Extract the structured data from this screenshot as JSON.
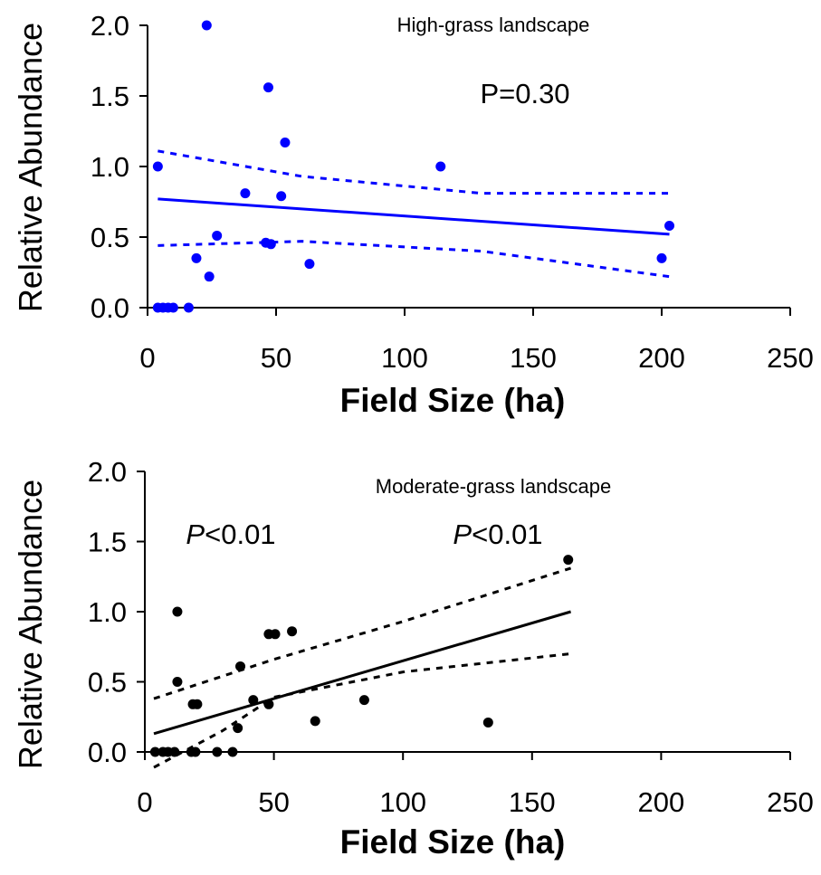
{
  "chart_data": [
    {
      "type": "scatter",
      "title": "High-grass landscape",
      "annotation": "P=0.30",
      "xlabel": "Field Size (ha)",
      "ylabel": "Relative Abundance",
      "xlim": [
        0,
        250
      ],
      "xticks": [
        0,
        50,
        100,
        150,
        200,
        250
      ],
      "ylim": [
        0,
        2
      ],
      "yticks": [
        {
          "value": 0,
          "label": "0.0"
        },
        {
          "value": 0.5,
          "label": "0.5"
        },
        {
          "value": 1,
          "label": "1.0"
        },
        {
          "value": 1.5,
          "label": "1.5"
        },
        {
          "value": 2,
          "label": "2.0"
        }
      ],
      "color": "#0000ff",
      "x": [
        4,
        23,
        47,
        53.5,
        114,
        38,
        52,
        27,
        46,
        48,
        19,
        63,
        24,
        200,
        203,
        4,
        6,
        8,
        10,
        16
      ],
      "values": [
        1.0,
        2.0,
        1.56,
        1.17,
        1.0,
        0.81,
        0.79,
        0.51,
        0.46,
        0.45,
        0.35,
        0.31,
        0.22,
        0.35,
        0.58,
        0,
        0,
        0,
        0,
        0
      ],
      "lines": [
        {
          "style": "solid",
          "x": [
            4,
            203
          ],
          "values": [
            0.77,
            0.52
          ]
        },
        {
          "style": "dashed",
          "x": [
            4,
            60,
            130,
            203
          ],
          "values": [
            1.11,
            0.93,
            0.81,
            0.81
          ]
        },
        {
          "style": "dashed",
          "x": [
            4,
            60,
            130,
            203
          ],
          "values": [
            0.44,
            0.47,
            0.4,
            0.22
          ]
        }
      ]
    },
    {
      "type": "scatter",
      "title": "Moderate-grass landscape",
      "annotation": "P<0.01",
      "annotation2": "P<0.01",
      "xlabel": "Field Size (ha)",
      "ylabel": "Relative Abundance",
      "xlim": [
        0,
        250
      ],
      "xticks": [
        0,
        50,
        100,
        150,
        200,
        250
      ],
      "ylim": [
        0,
        2
      ],
      "yticks": [
        {
          "value": 0,
          "label": "0.0"
        },
        {
          "value": 0.5,
          "label": "0.5"
        },
        {
          "value": 1,
          "label": "1.0"
        },
        {
          "value": 1.5,
          "label": "1.5"
        },
        {
          "value": 2,
          "label": "2.0"
        }
      ],
      "color": "#000000",
      "x": [
        12.6,
        12.6,
        18.6,
        20.3,
        37,
        42,
        48,
        50.5,
        57,
        48,
        36,
        66,
        85,
        133,
        164,
        4,
        7,
        9,
        11.5,
        18,
        19.6,
        28,
        34
      ],
      "values": [
        1.0,
        0.5,
        0.34,
        0.34,
        0.61,
        0.37,
        0.84,
        0.84,
        0.86,
        0.34,
        0.17,
        0.22,
        0.37,
        0.21,
        1.37,
        0,
        0,
        0,
        0,
        0,
        0,
        0,
        0
      ],
      "lines": [
        {
          "style": "solid",
          "x": [
            3.5,
            165
          ],
          "values": [
            0.13,
            1.0
          ]
        },
        {
          "style": "dashed",
          "x": [
            3.5,
            50,
            100,
            165
          ],
          "values": [
            0.38,
            0.66,
            0.93,
            1.31
          ]
        },
        {
          "style": "dashed",
          "x": [
            3.5,
            30,
            50,
            100,
            165
          ],
          "values": [
            -0.11,
            0.15,
            0.39,
            0.57,
            0.7
          ]
        }
      ]
    }
  ]
}
